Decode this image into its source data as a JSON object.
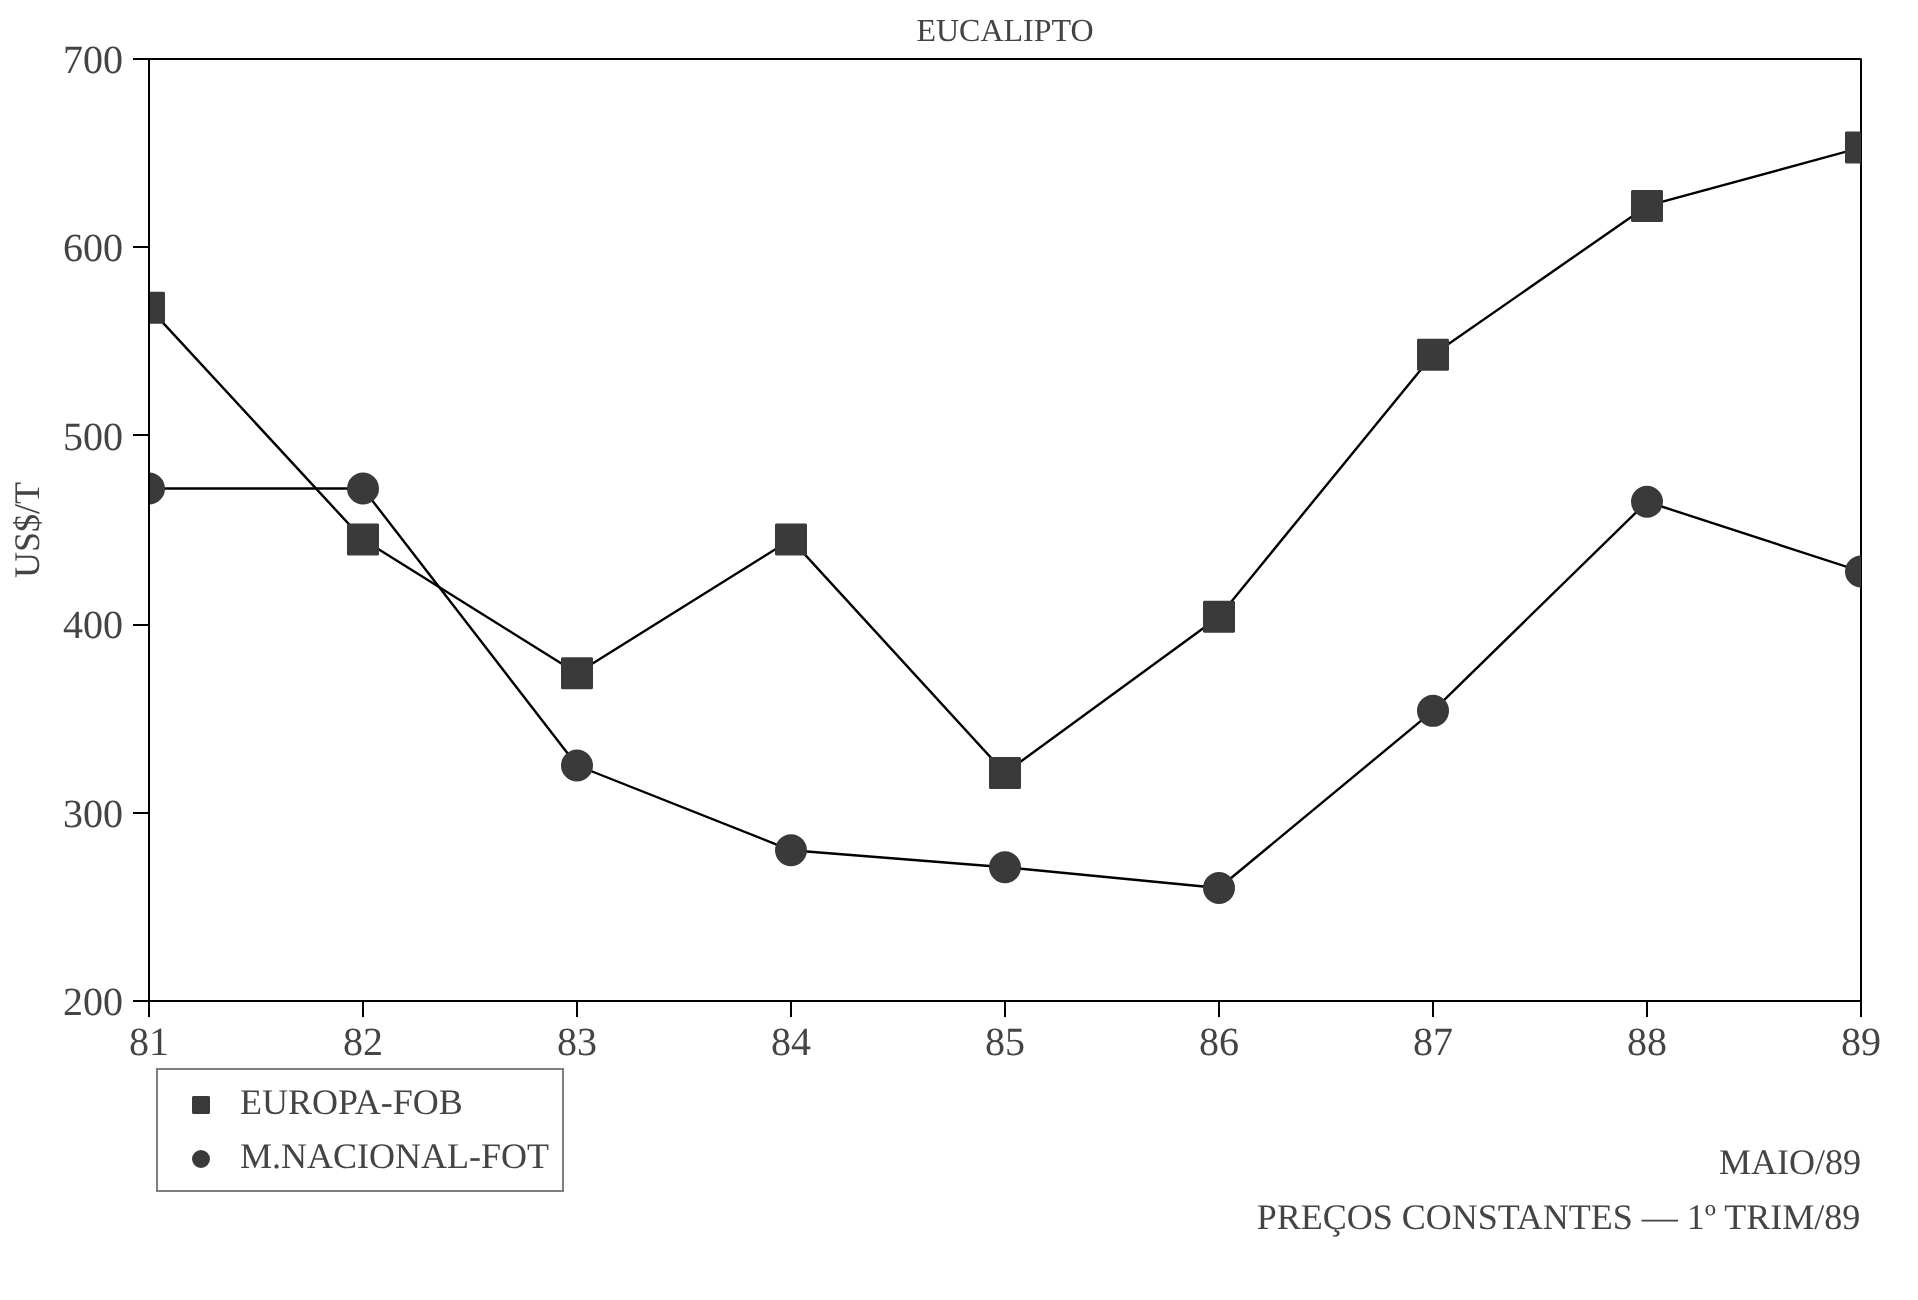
{
  "chart_data": {
    "type": "line",
    "title": "EUCALIPTO",
    "ylabel": "US$/T",
    "x": [
      81,
      82,
      83,
      84,
      85,
      86,
      87,
      88,
      89
    ],
    "xlim": [
      81,
      89
    ],
    "xticks": [
      81,
      82,
      83,
      84,
      85,
      86,
      87,
      88,
      89
    ],
    "ylim": [
      200,
      700
    ],
    "yticks": [
      200,
      300,
      400,
      500,
      600,
      700
    ],
    "grid": false,
    "legend": "bottom left",
    "line_style": "solid",
    "series": [
      {
        "name": "EUROPA-FOB",
        "color": "#3a3a3a",
        "marker": "square",
        "values": [
          568,
          445,
          374,
          445,
          321,
          404,
          543,
          622,
          653
        ]
      },
      {
        "name": "M.NACIONAL-FOT",
        "color": "#3a3a3a",
        "marker": "circle",
        "values": [
          472,
          472,
          325,
          280,
          271,
          260,
          354,
          465,
          428
        ]
      }
    ],
    "annotations": [
      "MAIO/89",
      "PREÇOS CONSTANTES — 1º TRIM/89"
    ]
  }
}
